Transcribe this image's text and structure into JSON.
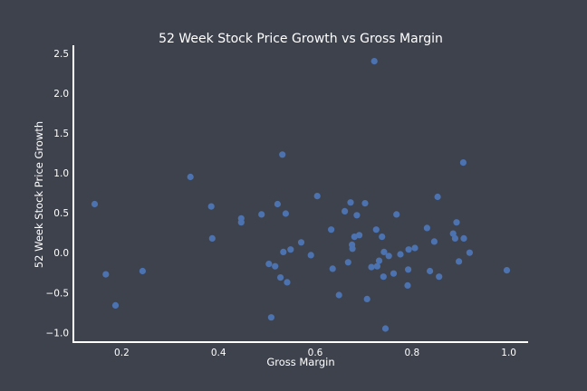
{
  "chart_data": {
    "type": "scatter",
    "title": "52 Week Stock Price Growth vs Gross Margin",
    "xlabel": "Gross Margin",
    "ylabel": "52 Week Stock Price Growth",
    "xlim": [
      0.1,
      1.04
    ],
    "ylim": [
      -1.12,
      2.6
    ],
    "xticks": [
      0.2,
      0.4,
      0.6,
      0.8,
      1.0
    ],
    "xtick_labels": [
      "0.2",
      "0.4",
      "0.6",
      "0.8",
      "1.0"
    ],
    "yticks": [
      -1.0,
      -0.5,
      0.0,
      0.5,
      1.0,
      1.5,
      2.0,
      2.5
    ],
    "ytick_labels": [
      "−1.0",
      "−0.5",
      "0.0",
      "0.5",
      "1.0",
      "1.5",
      "2.0",
      "2.5"
    ],
    "grid": false,
    "point_color": "#4c72b0",
    "background_color": "#3d424d",
    "points": [
      {
        "x": 0.144,
        "y": 0.61
      },
      {
        "x": 0.167,
        "y": -0.27
      },
      {
        "x": 0.187,
        "y": -0.66
      },
      {
        "x": 0.243,
        "y": -0.23
      },
      {
        "x": 0.342,
        "y": 0.95
      },
      {
        "x": 0.385,
        "y": 0.58
      },
      {
        "x": 0.387,
        "y": 0.18
      },
      {
        "x": 0.447,
        "y": 0.43
      },
      {
        "x": 0.447,
        "y": 0.38
      },
      {
        "x": 0.489,
        "y": 0.48
      },
      {
        "x": 0.504,
        "y": -0.14
      },
      {
        "x": 0.509,
        "y": -0.81
      },
      {
        "x": 0.517,
        "y": -0.17
      },
      {
        "x": 0.522,
        "y": 0.61
      },
      {
        "x": 0.528,
        "y": -0.31
      },
      {
        "x": 0.532,
        "y": 1.23
      },
      {
        "x": 0.534,
        "y": 0.01
      },
      {
        "x": 0.539,
        "y": 0.49
      },
      {
        "x": 0.542,
        "y": -0.37
      },
      {
        "x": 0.549,
        "y": 0.04
      },
      {
        "x": 0.571,
        "y": 0.13
      },
      {
        "x": 0.591,
        "y": -0.03
      },
      {
        "x": 0.604,
        "y": 0.71
      },
      {
        "x": 0.633,
        "y": 0.29
      },
      {
        "x": 0.636,
        "y": -0.2
      },
      {
        "x": 0.649,
        "y": -0.53
      },
      {
        "x": 0.661,
        "y": 0.52
      },
      {
        "x": 0.668,
        "y": -0.12
      },
      {
        "x": 0.673,
        "y": 0.63
      },
      {
        "x": 0.676,
        "y": 0.1
      },
      {
        "x": 0.677,
        "y": 0.05
      },
      {
        "x": 0.681,
        "y": 0.2
      },
      {
        "x": 0.686,
        "y": 0.47
      },
      {
        "x": 0.691,
        "y": 0.22
      },
      {
        "x": 0.703,
        "y": 0.62
      },
      {
        "x": 0.707,
        "y": -0.58
      },
      {
        "x": 0.716,
        "y": -0.18
      },
      {
        "x": 0.722,
        "y": 2.4
      },
      {
        "x": 0.726,
        "y": 0.29
      },
      {
        "x": 0.728,
        "y": -0.17
      },
      {
        "x": 0.732,
        "y": -0.1
      },
      {
        "x": 0.738,
        "y": 0.2
      },
      {
        "x": 0.741,
        "y": -0.3
      },
      {
        "x": 0.742,
        "y": 0.01
      },
      {
        "x": 0.745,
        "y": -0.95
      },
      {
        "x": 0.752,
        "y": -0.04
      },
      {
        "x": 0.762,
        "y": -0.26
      },
      {
        "x": 0.768,
        "y": 0.48
      },
      {
        "x": 0.776,
        "y": -0.02
      },
      {
        "x": 0.791,
        "y": -0.41
      },
      {
        "x": 0.792,
        "y": -0.21
      },
      {
        "x": 0.793,
        "y": 0.04
      },
      {
        "x": 0.806,
        "y": 0.06
      },
      {
        "x": 0.831,
        "y": 0.31
      },
      {
        "x": 0.837,
        "y": -0.23
      },
      {
        "x": 0.846,
        "y": 0.14
      },
      {
        "x": 0.853,
        "y": 0.7
      },
      {
        "x": 0.856,
        "y": -0.3
      },
      {
        "x": 0.885,
        "y": 0.24
      },
      {
        "x": 0.889,
        "y": 0.18
      },
      {
        "x": 0.892,
        "y": 0.38
      },
      {
        "x": 0.897,
        "y": -0.11
      },
      {
        "x": 0.906,
        "y": 1.13
      },
      {
        "x": 0.907,
        "y": 0.18
      },
      {
        "x": 0.919,
        "y": 0.0
      },
      {
        "x": 0.996,
        "y": -0.22
      }
    ]
  }
}
